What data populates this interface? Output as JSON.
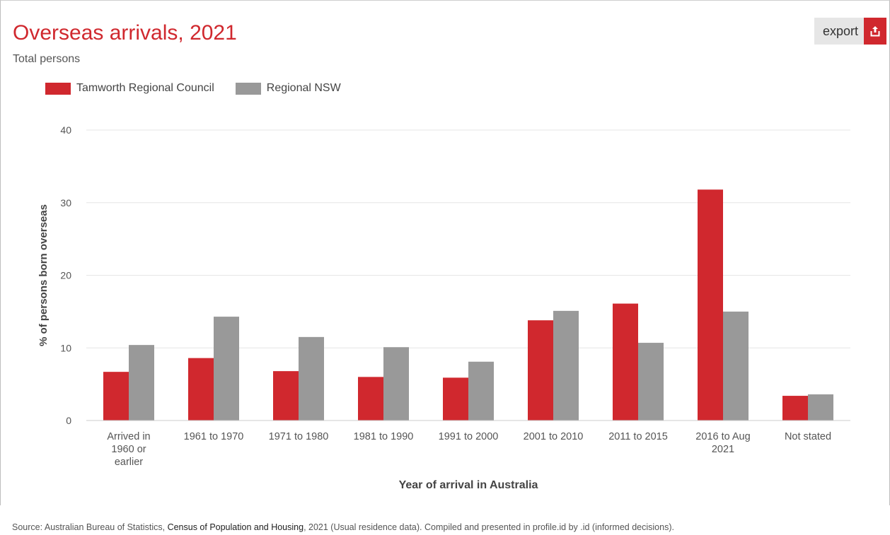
{
  "header": {
    "title": "Overseas arrivals, 2021",
    "subtitle": "Total persons",
    "export_label": "export",
    "export_icon": "share-export-icon"
  },
  "colors": {
    "primary": "#d0282e",
    "secondary": "#999999",
    "grid": "#e6e6e6"
  },
  "chart_data": {
    "type": "bar",
    "title": "Overseas arrivals, 2021",
    "subtitle": "Total persons",
    "xlabel": "Year of arrival in Australia",
    "ylabel": "% of persons born overseas",
    "ylim": [
      0,
      40
    ],
    "yticks": [
      0,
      10,
      20,
      30,
      40
    ],
    "grid": true,
    "legend_position": "top-left",
    "categories": [
      [
        "Arrived in",
        "1960 or",
        "earlier"
      ],
      [
        "1961 to 1970"
      ],
      [
        "1971 to 1980"
      ],
      [
        "1981 to 1990"
      ],
      [
        "1991 to 2000"
      ],
      [
        "2001 to 2010"
      ],
      [
        "2011 to 2015"
      ],
      [
        "2016 to Aug",
        "2021"
      ],
      [
        "Not stated"
      ]
    ],
    "series": [
      {
        "name": "Tamworth Regional Council",
        "color": "#d0282e",
        "values": [
          6.7,
          8.6,
          6.8,
          6.0,
          5.9,
          13.8,
          16.1,
          31.8,
          3.4
        ]
      },
      {
        "name": "Regional NSW",
        "color": "#999999",
        "values": [
          10.4,
          14.3,
          11.5,
          10.1,
          8.1,
          15.1,
          10.7,
          15.0,
          3.6
        ]
      }
    ]
  },
  "footer": {
    "source_prefix": "Source: Australian Bureau of Statistics, ",
    "source_highlight": "Census of Population and Housing",
    "source_suffix": ", 2021 (Usual residence data). Compiled and presented in profile.id by .id (informed decisions)."
  }
}
